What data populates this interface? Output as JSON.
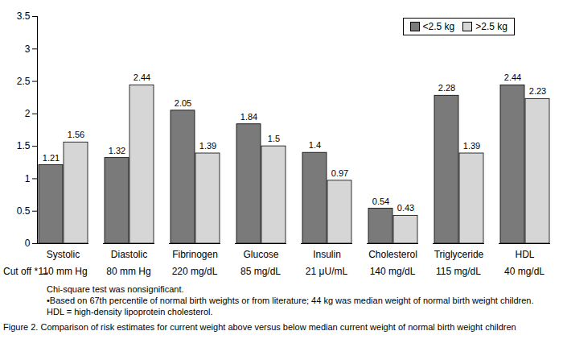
{
  "chart_data": {
    "type": "bar",
    "categories": [
      "Systolic",
      "Diastolic",
      "Fibrinogen",
      "Glucose",
      "Insulin",
      "Cholesterol",
      "Triglyceride",
      "HDL"
    ],
    "series": [
      {
        "name": "<2.5 kg",
        "color": "#7a7a7a",
        "values": [
          1.21,
          1.32,
          2.05,
          1.84,
          1.4,
          0.54,
          2.28,
          2.44
        ]
      },
      {
        "name": ">2.5 kg",
        "color": "#d6d6d6",
        "values": [
          1.56,
          2.44,
          1.39,
          1.5,
          0.97,
          0.43,
          1.39,
          2.23
        ]
      }
    ],
    "ylim": [
      0,
      3.5
    ],
    "yticks": [
      0,
      0.5,
      1,
      1.5,
      2,
      2.5,
      3,
      3.5
    ],
    "data_labels": true,
    "legend": "top-right",
    "grid": false,
    "cutoff_label": "Cut off * →",
    "cutoffs": [
      "110 mm Hg",
      "80 mm Hg",
      "220 mg/dL",
      "85 mg/dL",
      "21 μU/mL",
      "140 mg/dL",
      "115 mg/dL",
      "40 mg/dL"
    ],
    "notes": [
      "Chi-square test was nonsignificant.",
      "•Based on 67th percentile of normal birth weights or from literature; 44 kg was median weight of normal birth weight children.",
      "HDL = high-density lipoprotein cholesterol."
    ],
    "caption": "Figure 2. Comparison of risk estimates for current weight above versus below median current weight of normal birth weight children"
  }
}
